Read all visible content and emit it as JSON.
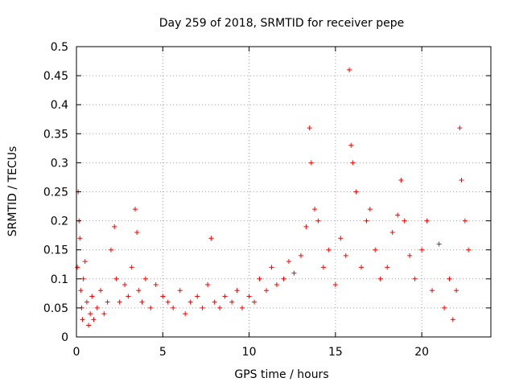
{
  "chart_data": {
    "type": "scatter",
    "title": "Day 259 of 2018, SRMTID for receiver pepe",
    "xlabel": "GPS time / hours",
    "ylabel": "SRMTID / TECUs",
    "xlim": [
      0,
      24
    ],
    "ylim": [
      0,
      0.5
    ],
    "grid": true,
    "marker": "+",
    "point_color": "#ff0000",
    "xticks": [
      0,
      5,
      10,
      15,
      20
    ],
    "yticks": [
      0,
      0.05,
      0.1,
      0.15,
      0.2,
      0.25,
      0.3,
      0.35,
      0.4,
      0.45,
      0.5
    ],
    "xtick_labels": [
      "0",
      "5",
      "10",
      "15",
      "20"
    ],
    "ytick_labels": [
      "0",
      "0.05",
      "0.1",
      "0.15",
      "0.2",
      "0.25",
      "0.3",
      "0.35",
      "0.4",
      "0.45",
      "0.5"
    ],
    "series": [
      {
        "name": "SRMTID",
        "x": [
          0.05,
          0.1,
          0.15,
          0.2,
          0.25,
          0.3,
          0.35,
          0.4,
          0.5,
          0.6,
          0.7,
          0.8,
          0.9,
          1.0,
          1.2,
          1.4,
          1.6,
          1.8,
          2.0,
          2.2,
          2.3,
          2.5,
          2.8,
          3.0,
          3.2,
          3.4,
          3.5,
          3.6,
          3.8,
          4.0,
          4.3,
          4.6,
          5.0,
          5.3,
          5.6,
          6.0,
          6.3,
          6.6,
          7.0,
          7.3,
          7.6,
          7.8,
          8.0,
          8.3,
          8.6,
          9.0,
          9.3,
          9.6,
          10.0,
          10.3,
          10.6,
          11.0,
          11.3,
          11.6,
          12.0,
          12.3,
          12.6,
          13.0,
          13.3,
          13.5,
          13.6,
          13.8,
          14.0,
          14.3,
          14.6,
          15.0,
          15.3,
          15.6,
          15.8,
          15.9,
          16.0,
          16.2,
          16.5,
          16.8,
          17.0,
          17.3,
          17.6,
          18.0,
          18.3,
          18.6,
          18.8,
          19.0,
          19.3,
          19.6,
          20.0,
          20.3,
          20.6,
          21.0,
          21.3,
          21.6,
          21.8,
          22.0,
          22.2,
          22.3,
          22.5,
          22.7
        ],
        "y": [
          0.12,
          0.25,
          0.2,
          0.17,
          0.08,
          0.05,
          0.03,
          0.1,
          0.13,
          0.06,
          0.02,
          0.04,
          0.07,
          0.03,
          0.05,
          0.08,
          0.04,
          0.06,
          0.15,
          0.19,
          0.1,
          0.06,
          0.09,
          0.07,
          0.12,
          0.22,
          0.18,
          0.08,
          0.06,
          0.1,
          0.05,
          0.09,
          0.07,
          0.06,
          0.05,
          0.08,
          0.04,
          0.06,
          0.07,
          0.05,
          0.09,
          0.17,
          0.06,
          0.05,
          0.07,
          0.06,
          0.08,
          0.05,
          0.07,
          0.06,
          0.1,
          0.08,
          0.12,
          0.09,
          0.1,
          0.13,
          0.11,
          0.14,
          0.19,
          0.36,
          0.3,
          0.22,
          0.2,
          0.12,
          0.15,
          0.09,
          0.17,
          0.14,
          0.46,
          0.33,
          0.3,
          0.25,
          0.12,
          0.2,
          0.22,
          0.15,
          0.1,
          0.12,
          0.18,
          0.21,
          0.27,
          0.2,
          0.14,
          0.1,
          0.15,
          0.2,
          0.08,
          0.16,
          0.05,
          0.1,
          0.03,
          0.08,
          0.36,
          0.27,
          0.2,
          0.15
        ]
      }
    ]
  }
}
